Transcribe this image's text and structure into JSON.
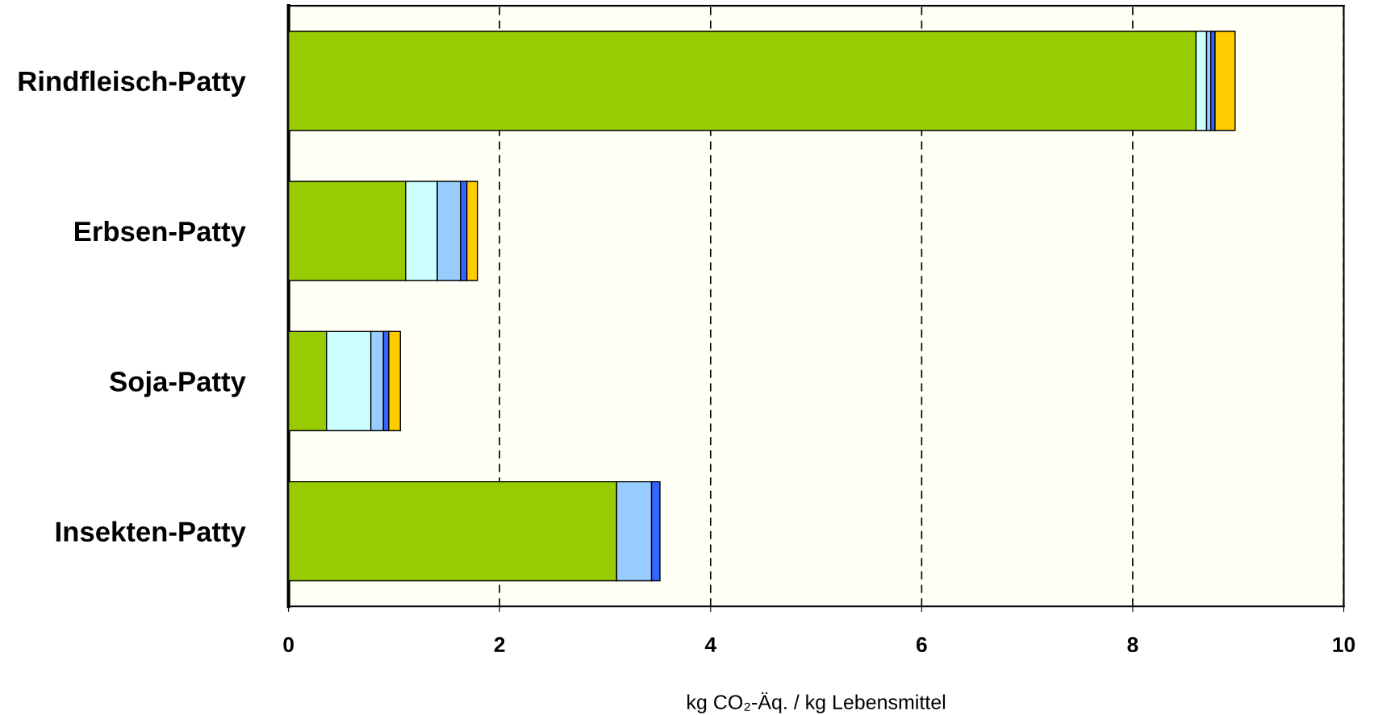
{
  "chart_data": {
    "type": "bar",
    "orientation": "horizontal",
    "stacked": true,
    "xlabel": "kg CO₂-Äq. / kg Lebensmittel",
    "categories": [
      "Rindfleisch-Patty",
      "Erbsen-Patty",
      "Soja-Patty",
      "Insekten-Patty"
    ],
    "series": [
      {
        "color": "#99cc00",
        "values": [
          8.6,
          1.11,
          0.36,
          3.11
        ]
      },
      {
        "color": "#ccffff",
        "values": [
          0.1,
          0.3,
          0.42,
          null
        ]
      },
      {
        "color": "#99ccff",
        "values": [
          0.04,
          0.22,
          0.12,
          0.33
        ]
      },
      {
        "color": "#3366ff",
        "values": [
          0.04,
          0.06,
          0.05,
          0.08
        ]
      },
      {
        "color": "#ffcc00",
        "values": [
          0.19,
          0.1,
          0.11,
          null
        ]
      }
    ],
    "xlim": [
      0,
      10
    ],
    "xticks": [
      0,
      2,
      4,
      6,
      8,
      10
    ],
    "grid": "x"
  }
}
